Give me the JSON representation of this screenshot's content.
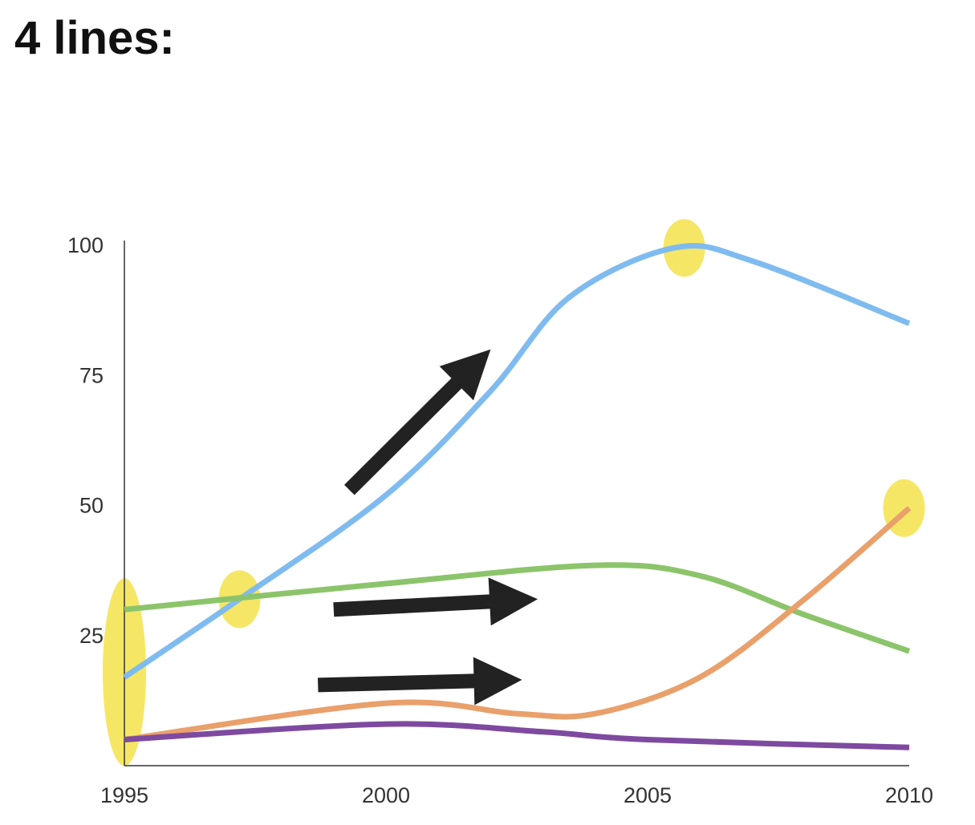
{
  "page": {
    "title": "4 lines:"
  },
  "chart_data": {
    "type": "line",
    "title": "4 lines:",
    "xlabel": "",
    "ylabel": "",
    "xlim": [
      1995,
      2010
    ],
    "ylim": [
      0,
      100
    ],
    "x_ticks": [
      1995,
      2000,
      2005,
      2010
    ],
    "y_ticks": [
      25,
      50,
      75,
      100
    ],
    "grid": false,
    "legend": "none",
    "series": [
      {
        "color": "#7fbbef",
        "points": [
          [
            1995,
            17
          ],
          [
            1997.2,
            32
          ],
          [
            2000,
            52
          ],
          [
            2002,
            72
          ],
          [
            2003.5,
            90
          ],
          [
            2005.5,
            99.5
          ],
          [
            2007,
            97
          ],
          [
            2010,
            85
          ]
        ]
      },
      {
        "color": "#8cc46b",
        "points": [
          [
            1995,
            30
          ],
          [
            2000,
            35
          ],
          [
            2004,
            38.5
          ],
          [
            2006,
            36.5
          ],
          [
            2008,
            29
          ],
          [
            2010,
            22
          ]
        ]
      },
      {
        "color": "#e9a06b",
        "points": [
          [
            1995,
            5
          ],
          [
            2000,
            12
          ],
          [
            2002.5,
            10
          ],
          [
            2004,
            10
          ],
          [
            2006,
            17
          ],
          [
            2008,
            32
          ],
          [
            2010,
            49.5
          ]
        ]
      },
      {
        "color": "#7e4aa0",
        "points": [
          [
            1995,
            5
          ],
          [
            2000,
            8
          ],
          [
            2003,
            6.5
          ],
          [
            2005,
            5
          ],
          [
            2010,
            3.5
          ]
        ]
      }
    ],
    "highlights": [
      {
        "x": 1995,
        "y": 17,
        "color": "#f3e34a",
        "shape": "tall-oval",
        "span": [
          0,
          36
        ]
      },
      {
        "x": 1997.2,
        "y": 32,
        "color": "#f3e34a",
        "shape": "oval"
      },
      {
        "x": 2005.7,
        "y": 99.5,
        "color": "#f3e34a",
        "shape": "oval"
      },
      {
        "x": 2009.9,
        "y": 49.5,
        "color": "#f3e34a",
        "shape": "oval"
      }
    ],
    "annotations": [
      {
        "type": "arrow",
        "color": "#222222",
        "from": [
          1999.3,
          53
        ],
        "to": [
          2002,
          80
        ]
      },
      {
        "type": "arrow",
        "color": "#222222",
        "from": [
          1999.0,
          30
        ],
        "to": [
          2002.9,
          32
        ]
      },
      {
        "type": "arrow",
        "color": "#222222",
        "from": [
          1998.7,
          15.5
        ],
        "to": [
          2002.6,
          16.5
        ]
      }
    ]
  }
}
